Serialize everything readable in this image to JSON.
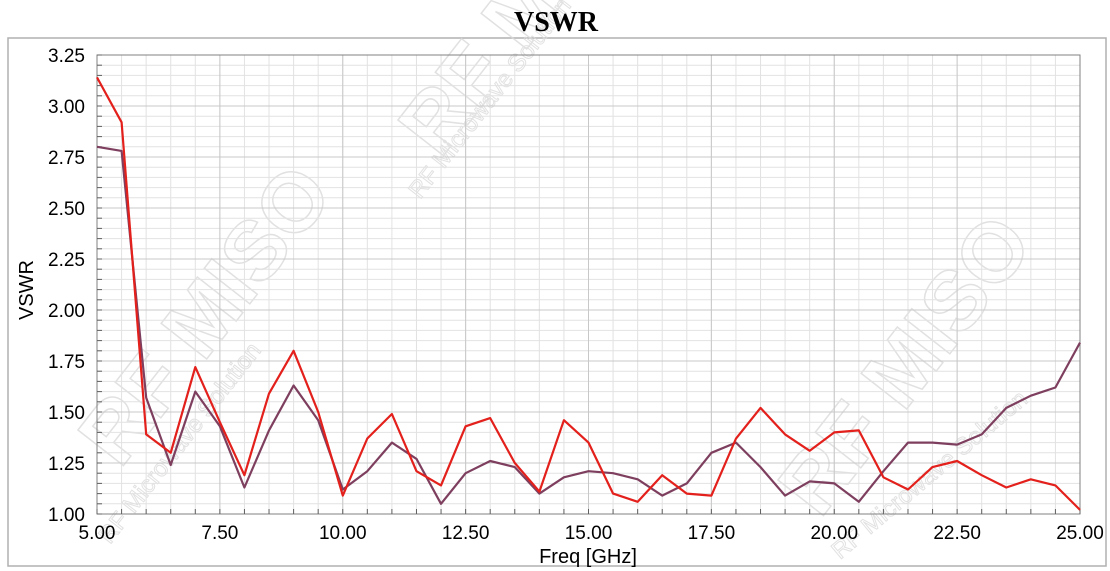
{
  "chart_data": {
    "type": "line",
    "title": "VSWR",
    "xlabel": "Freq [GHz]",
    "ylabel": "VSWR",
    "xlim": [
      5.0,
      25.0
    ],
    "ylim": [
      1.0,
      3.25
    ],
    "xticks": [
      "5.00",
      "7.50",
      "10.00",
      "12.50",
      "15.00",
      "17.50",
      "20.00",
      "22.50",
      "25.00"
    ],
    "yticks": [
      "1.00",
      "1.25",
      "1.50",
      "1.75",
      "2.00",
      "2.25",
      "2.50",
      "2.75",
      "3.00",
      "3.25"
    ],
    "grid": true,
    "series": [
      {
        "color": "#e3201b",
        "x": [
          5.0,
          5.5,
          6.0,
          6.5,
          7.0,
          7.5,
          8.0,
          8.5,
          9.0,
          9.5,
          10.0,
          10.5,
          11.0,
          11.5,
          12.0,
          12.5,
          13.0,
          13.5,
          14.0,
          14.5,
          15.0,
          15.5,
          16.0,
          16.5,
          17.0,
          17.5,
          18.0,
          18.5,
          19.0,
          19.5,
          20.0,
          20.5,
          21.0,
          21.5,
          22.0,
          22.5,
          23.0,
          23.5,
          24.0,
          24.5,
          25.0
        ],
        "values": [
          3.14,
          2.92,
          1.39,
          1.3,
          1.72,
          1.45,
          1.19,
          1.59,
          1.8,
          1.5,
          1.09,
          1.37,
          1.49,
          1.21,
          1.14,
          1.43,
          1.47,
          1.25,
          1.11,
          1.46,
          1.35,
          1.1,
          1.06,
          1.19,
          1.1,
          1.09,
          1.37,
          1.52,
          1.39,
          1.31,
          1.4,
          1.41,
          1.18,
          1.12,
          1.23,
          1.26,
          1.19,
          1.13,
          1.17,
          1.14,
          1.02
        ]
      },
      {
        "color": "#7e3f5f",
        "x": [
          5.0,
          5.5,
          6.0,
          6.5,
          7.0,
          7.5,
          8.0,
          8.5,
          9.0,
          9.5,
          10.0,
          10.5,
          11.0,
          11.5,
          12.0,
          12.5,
          13.0,
          13.5,
          14.0,
          14.5,
          15.0,
          15.5,
          16.0,
          16.5,
          17.0,
          17.5,
          18.0,
          18.5,
          19.0,
          19.5,
          20.0,
          20.5,
          21.0,
          21.5,
          22.0,
          22.5,
          23.0,
          23.5,
          24.0,
          24.5,
          25.0
        ],
        "values": [
          2.8,
          2.78,
          1.57,
          1.24,
          1.6,
          1.43,
          1.13,
          1.41,
          1.63,
          1.46,
          1.12,
          1.21,
          1.35,
          1.27,
          1.05,
          1.2,
          1.26,
          1.23,
          1.1,
          1.18,
          1.21,
          1.2,
          1.17,
          1.09,
          1.15,
          1.3,
          1.35,
          1.23,
          1.09,
          1.16,
          1.15,
          1.06,
          1.21,
          1.35,
          1.35,
          1.34,
          1.39,
          1.52,
          1.58,
          1.62,
          1.84
        ]
      }
    ]
  },
  "watermark": {
    "marks": [
      "RF MISO",
      "RF MISO",
      "RF MISO"
    ],
    "slogans": [
      "RF Microwave Solution",
      "RF Microwave Solution",
      "RF Microwave Solution"
    ]
  }
}
